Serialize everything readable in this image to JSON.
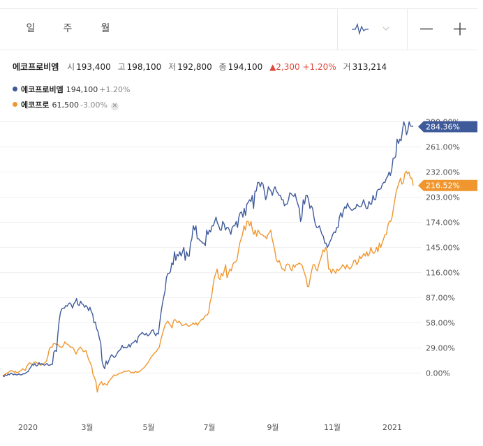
{
  "period_tabs": [
    {
      "label": "일",
      "active": true
    },
    {
      "label": "주",
      "active": false
    },
    {
      "label": "월",
      "active": false
    }
  ],
  "zoom": {
    "out_label": "—",
    "in_label": "+"
  },
  "quote": {
    "name": "에코프로비엠",
    "open_label": "시",
    "open": "193,400",
    "high_label": "고",
    "high": "198,100",
    "low_label": "저",
    "low": "192,800",
    "close_label": "종",
    "close": "194,100",
    "change": "▲2,300",
    "change_pct": "+1.20%",
    "volume_label": "거",
    "volume": "313,214"
  },
  "legend": [
    {
      "name": "에코프로비엠",
      "price": "194,100",
      "change": "+1.20%",
      "color": "#3f5a9b",
      "removable": false
    },
    {
      "name": "에코프로",
      "price": "61,500",
      "change": "-3.00%",
      "color": "#f0962e",
      "removable": true
    }
  ],
  "chart_data": {
    "type": "line",
    "title": "",
    "x_tick_labels": [
      "2020",
      "3월",
      "5월",
      "7월",
      "9월",
      "11월",
      "2021"
    ],
    "y_tick_labels": [
      "0.00%",
      "29.00%",
      "58.00%",
      "87.00%",
      "116.00%",
      "145.00%",
      "174.00%",
      "203.00%",
      "232.00%",
      "261.00%",
      "290.00%"
    ],
    "ylim": [
      -22,
      297
    ],
    "y_unit": "%",
    "series": [
      {
        "name": "에코프로비엠",
        "color": "#3f5a9b",
        "last_label": "284.36%",
        "values": [
          -3,
          -4,
          -2,
          -3,
          -1,
          -2,
          0,
          -1,
          -2,
          -1,
          -2,
          -2,
          -1,
          -2,
          -2,
          -1,
          -1,
          0,
          1,
          2,
          5,
          7,
          10,
          9,
          11,
          8,
          9,
          12,
          10,
          11,
          10,
          9,
          10,
          11,
          9,
          9,
          10,
          10,
          24,
          26,
          25,
          44,
          60,
          70,
          74,
          75,
          75,
          78,
          77,
          80,
          81,
          79,
          75,
          80,
          82,
          86,
          79,
          78,
          83,
          80,
          79,
          76,
          78,
          76,
          72,
          76,
          71,
          68,
          58,
          59,
          51,
          48,
          40,
          35,
          14,
          8,
          5,
          14,
          10,
          14,
          18,
          21,
          20,
          18,
          19,
          22,
          25,
          26,
          28,
          32,
          29,
          30,
          29,
          30,
          33,
          30,
          34,
          35,
          36,
          38,
          35,
          42,
          44,
          45,
          47,
          45,
          44,
          46,
          43,
          44,
          46,
          49,
          50,
          46,
          43,
          46,
          45,
          58,
          70,
          80,
          88,
          95,
          110,
          115,
          115,
          117,
          127,
          125,
          140,
          130,
          137,
          135,
          140,
          135,
          140,
          145,
          130,
          140,
          135,
          135,
          150,
          155,
          170,
          165,
          170,
          155,
          155,
          153,
          152,
          150,
          150,
          147,
          165,
          160,
          165,
          163,
          170,
          170,
          175,
          180,
          173,
          170,
          165,
          165,
          175,
          172,
          165,
          168,
          168,
          165,
          160,
          168,
          170,
          170,
          175,
          168,
          180,
          185,
          186,
          180,
          190,
          182,
          195,
          197,
          200,
          198,
          205,
          190,
          210,
          210,
          220,
          220,
          215,
          220,
          218,
          210,
          200,
          205,
          215,
          212,
          210,
          205,
          212,
          215,
          210,
          208,
          205,
          205,
          200,
          200,
          193,
          195,
          195,
          200,
          208,
          207,
          205,
          204,
          207,
          200,
          195,
          190,
          175,
          180,
          200,
          195,
          205,
          205,
          200,
          190,
          193,
          190,
          180,
          172,
          168,
          168,
          170,
          165,
          160,
          158,
          150,
          150,
          145,
          148,
          152,
          155,
          160,
          163,
          162,
          168,
          168,
          180,
          185,
          180,
          188,
          192,
          190,
          196,
          192,
          190,
          188,
          188,
          190,
          190,
          195,
          193,
          192,
          192,
          195,
          200,
          195,
          190,
          190,
          198,
          195,
          195,
          205,
          200,
          200,
          210,
          212,
          212,
          213,
          218,
          220,
          220,
          225,
          227,
          232,
          228,
          235,
          248,
          248,
          250,
          270,
          265,
          270,
          268,
          280,
          290,
          285,
          275,
          280,
          290,
          285,
          285,
          284.36
        ]
      },
      {
        "name": "에코프로",
        "color": "#f0962e",
        "last_label": "216.52%",
        "values": [
          -3,
          -2,
          -1,
          0,
          1,
          2,
          3,
          2,
          1,
          2,
          0,
          1,
          2,
          3,
          5,
          4,
          3,
          8,
          10,
          12,
          11,
          10,
          12,
          13,
          12,
          11,
          10,
          9,
          10,
          11,
          12,
          14,
          20,
          28,
          30,
          30,
          34,
          34,
          33,
          33,
          31,
          30,
          30,
          32,
          36,
          34,
          33,
          32,
          30,
          30,
          29,
          25,
          22,
          26,
          28,
          30,
          28,
          25,
          25,
          26,
          20,
          15,
          12,
          8,
          -2,
          -5,
          -10,
          -22,
          -15,
          -12,
          -10,
          -14,
          -12,
          -13,
          -14,
          -10,
          -8,
          -6,
          -4,
          -2,
          -3,
          -2,
          -1,
          0,
          0,
          1,
          2,
          2,
          2,
          3,
          2,
          0,
          1,
          0,
          2,
          1,
          1,
          2,
          3,
          5,
          6,
          8,
          10,
          12,
          15,
          18,
          20,
          22,
          24,
          25,
          28,
          30,
          38,
          44,
          50,
          55,
          58,
          60,
          57,
          55,
          52,
          60,
          62,
          60,
          58,
          60,
          58,
          55,
          55,
          56,
          57,
          55,
          54,
          55,
          56,
          58,
          56,
          58,
          55,
          58,
          60,
          62,
          62,
          65,
          67,
          67,
          70,
          82,
          88,
          100,
          110,
          115,
          120,
          110,
          108,
          115,
          112,
          118,
          125,
          110,
          115,
          120,
          118,
          125,
          128,
          128,
          130,
          140,
          150,
          155,
          160,
          170,
          165,
          175,
          175,
          170,
          175,
          165,
          160,
          165,
          158,
          165,
          162,
          160,
          160,
          158,
          158,
          155,
          160,
          162,
          165,
          155,
          148,
          140,
          130,
          128,
          130,
          125,
          120,
          120,
          118,
          125,
          126,
          125,
          120,
          118,
          125,
          122,
          125,
          125,
          127,
          126,
          125,
          120,
          115,
          110,
          100,
          100,
          110,
          118,
          125,
          125,
          120,
          118,
          125,
          130,
          135,
          142,
          140,
          145,
          140,
          120,
          120,
          115,
          120,
          118,
          115,
          120,
          118,
          120,
          122,
          125,
          123,
          120,
          125,
          122,
          120,
          122,
          125,
          130,
          130,
          125,
          128,
          135,
          132,
          135,
          138,
          135,
          140,
          135,
          138,
          145,
          140,
          138,
          140,
          145,
          140,
          150,
          145,
          150,
          155,
          160,
          160,
          170,
          175,
          175,
          180,
          190,
          200,
          210,
          215,
          220,
          225,
          218,
          220,
          230,
          233,
          230,
          232,
          225,
          225,
          216.52
        ]
      }
    ]
  }
}
